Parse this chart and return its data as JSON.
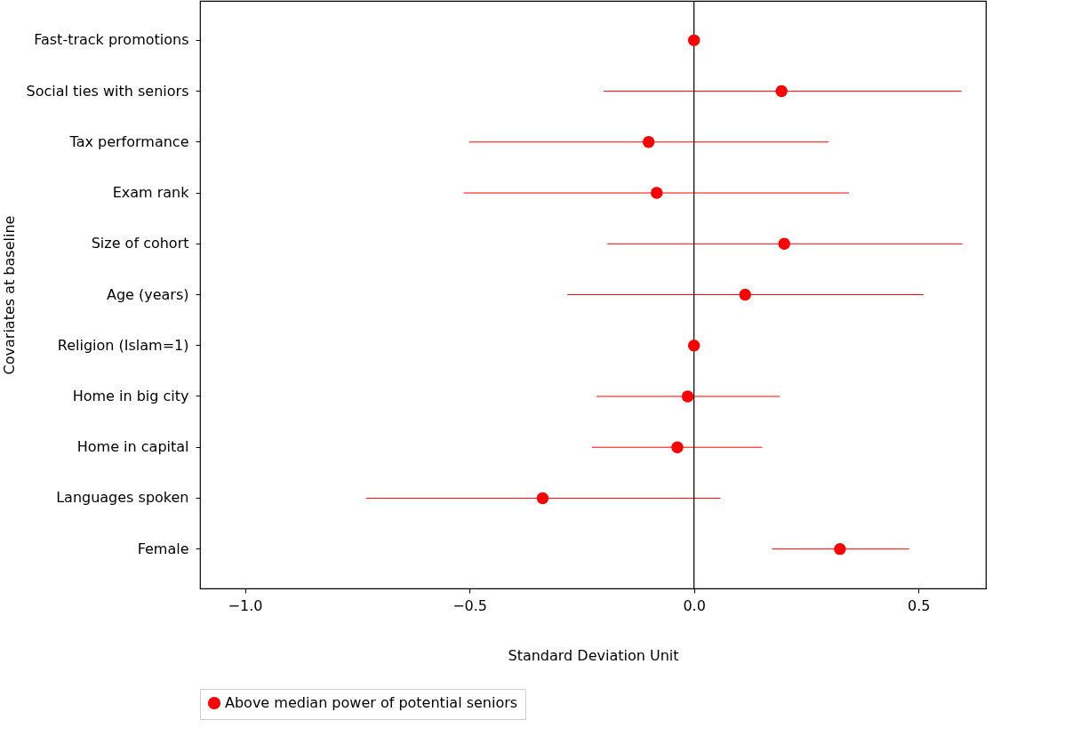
{
  "chart_data": {
    "type": "scatter",
    "orientation": "horizontal",
    "xlabel": "Standard Deviation Unit",
    "ylabel": "Covariates at baseline",
    "categories": [
      "Fast-track promotions",
      "Social ties with seniors",
      "Tax performance",
      "Exam rank",
      "Size of cohort",
      "Age (years)",
      "Religion (Islam=1)",
      "Home in big city",
      "Home in capital",
      "Languages spoken",
      "Female"
    ],
    "series": [
      {
        "name": "Above median power of potential seniors",
        "color": "#ff0000",
        "values": [
          0,
          0.195,
          -0.101,
          -0.083,
          0.201,
          0.114,
          0,
          -0.014,
          -0.037,
          -0.337,
          0.325
        ],
        "errors": [
          null,
          [
            -0.201,
            0.596
          ],
          [
            -0.501,
            0.3
          ],
          [
            -0.513,
            0.345
          ],
          [
            -0.193,
            0.598
          ],
          [
            -0.282,
            0.511
          ],
          null,
          [
            -0.217,
            0.191
          ],
          [
            -0.227,
            0.152
          ],
          [
            -0.73,
            0.059
          ],
          [
            0.174,
            0.479
          ]
        ]
      }
    ],
    "xlim": [
      -1.1,
      0.65
    ],
    "xticks": [
      {
        "value": -1,
        "label": "−1.0"
      },
      {
        "value": -0.5,
        "label": "−0.5"
      },
      {
        "value": 0,
        "label": "0.0"
      },
      {
        "value": 0.5,
        "label": "0.5"
      }
    ],
    "ref_lines": [
      {
        "axis": "x",
        "value": 0,
        "color": "#000000"
      }
    ],
    "marker": "circle",
    "legend": "bottom",
    "grid": false
  }
}
